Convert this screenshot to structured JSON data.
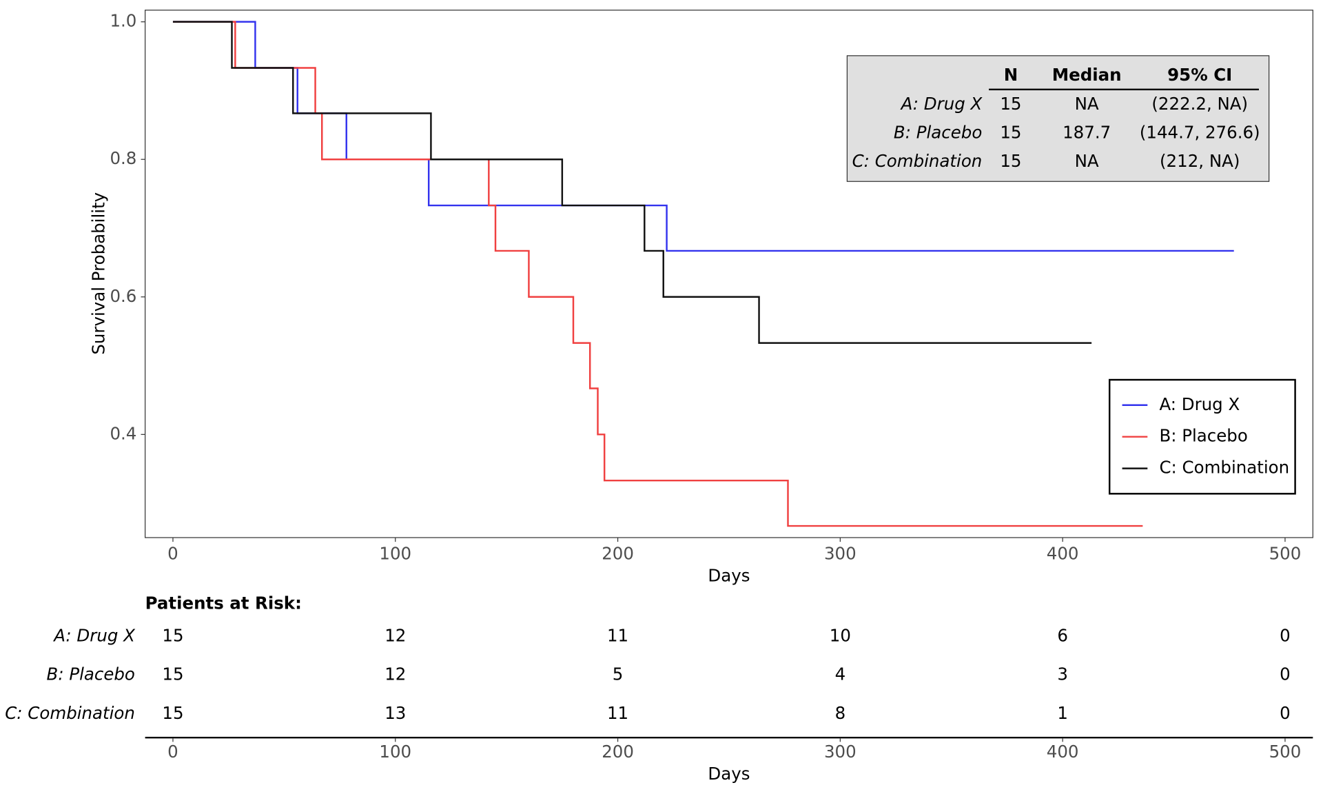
{
  "chart_data": {
    "type": "step",
    "y_label": "Survival Probability",
    "x_label": "Days",
    "xlim": [
      -12.5,
      512.5
    ],
    "ylim": [
      0.25,
      1.017
    ],
    "xticks": [
      0,
      100,
      200,
      300,
      400,
      500
    ],
    "yticks": [
      0.4,
      0.6,
      0.8,
      {
        "value": 1,
        "label": "1.0"
      }
    ],
    "legend": "lower right",
    "series": [
      {
        "name": "A: Drug X",
        "color": "#3333ee",
        "x": [
          0,
          37,
          56,
          78,
          115,
          222,
          477
        ],
        "values": [
          1,
          0.933,
          0.867,
          0.8,
          0.733,
          0.667,
          0.667
        ]
      },
      {
        "name": "B: Placebo",
        "color": "#f04040",
        "x": [
          0,
          28,
          64,
          67,
          142,
          145,
          160,
          180,
          187.5,
          191,
          194,
          276.5,
          436
        ],
        "values": [
          1,
          0.933,
          0.867,
          0.8,
          0.733,
          0.667,
          0.6,
          0.533,
          0.467,
          0.4,
          0.333,
          0.267,
          0.267
        ]
      },
      {
        "name": "C: Combination",
        "color": "#111111",
        "x": [
          0,
          26.5,
          54,
          116,
          175,
          212,
          220.5,
          263.5,
          413
        ],
        "values": [
          1,
          0.933,
          0.867,
          0.8,
          0.733,
          0.667,
          0.6,
          0.533,
          0.533
        ]
      }
    ],
    "summary_table": {
      "columns": [
        "N",
        "Median",
        "95% CI"
      ],
      "rows": [
        {
          "label": "A: Drug X",
          "cells": [
            15,
            "NA",
            "(222.2, NA)"
          ]
        },
        {
          "label": "B: Placebo",
          "cells": [
            15,
            187.7,
            "(144.7, 276.6)"
          ]
        },
        {
          "label": "C: Combination",
          "cells": [
            15,
            "NA",
            "(212, NA)"
          ]
        }
      ]
    },
    "risk_table": {
      "title": "Patients at Risk:",
      "rows": [
        {
          "label": "A: Drug X",
          "counts": [
            15,
            12,
            11,
            10,
            6,
            0
          ]
        },
        {
          "label": "B: Placebo",
          "counts": [
            15,
            12,
            5,
            4,
            3,
            0
          ]
        },
        {
          "label": "C: Combination",
          "counts": [
            15,
            13,
            11,
            8,
            1,
            0
          ]
        }
      ]
    }
  }
}
